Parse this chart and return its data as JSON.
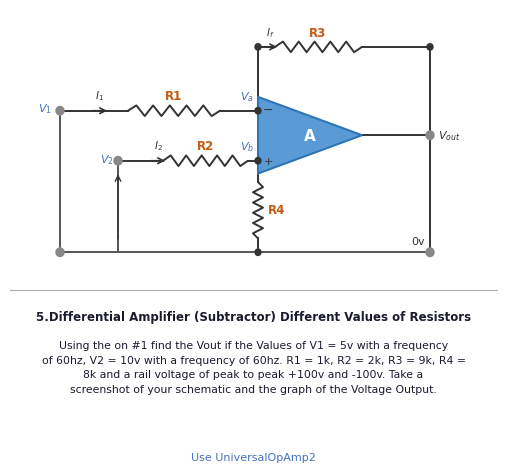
{
  "bg_color": "#ffffff",
  "circuit_color": "#333333",
  "line_color": "#555555",
  "blue_color": "#4472c4",
  "orange_color": "#c55a11",
  "op_amp_fill": "#5b9bd5",
  "op_amp_edge": "#2e75b6",
  "node_color": "#888888",
  "title": "5.Differential Amplifier (Subtractor) Different Values of Resistors",
  "body_line1": "Using the on #1 find the Vout if the Values of V1 = 5v with a frequency",
  "body_line2": "of 60hz, V2 = 10v with a frequency of 60hz. R1 = 1k, R2 = 2k, R3 = 9k, R4 =",
  "body_line3": "8k and a rail voltage of peak to peak +100v and -100v. Take a",
  "body_line4": "screenshot of your schematic and the graph of the Voltage Output.",
  "footer_text": "Use UniversalOpAmp2",
  "figsize": [
    5.07,
    4.77
  ],
  "dpi": 100
}
